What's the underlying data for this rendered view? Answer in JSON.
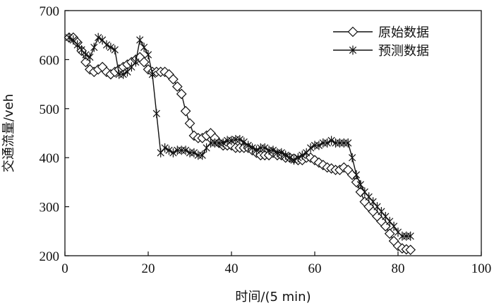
{
  "chart_data": {
    "type": "line",
    "xlabel": "时间/(5 min)",
    "ylabel": "交通流量/veh",
    "xlim": [
      0,
      100
    ],
    "ylim": [
      200,
      700
    ],
    "xticks": [
      0,
      20,
      40,
      60,
      80,
      100
    ],
    "yticks": [
      200,
      300,
      400,
      500,
      600,
      700
    ],
    "grid": false,
    "legend_position": "top-right",
    "series": [
      {
        "name": "原始数据",
        "marker": "diamond",
        "color": "#111111",
        "x": [
          1,
          2,
          3,
          4,
          5,
          6,
          7,
          8,
          9,
          10,
          11,
          12,
          13,
          14,
          15,
          16,
          17,
          18,
          19,
          20,
          21,
          22,
          23,
          24,
          25,
          26,
          27,
          28,
          29,
          30,
          31,
          32,
          33,
          34,
          35,
          36,
          37,
          38,
          39,
          40,
          41,
          42,
          43,
          44,
          45,
          46,
          47,
          48,
          49,
          50,
          51,
          52,
          53,
          54,
          55,
          56,
          57,
          58,
          59,
          60,
          61,
          62,
          63,
          64,
          65,
          66,
          67,
          68,
          69,
          70,
          71,
          72,
          73,
          74,
          75,
          76,
          77,
          78,
          79,
          80,
          81,
          82,
          83
        ],
        "y": [
          645,
          645,
          635,
          618,
          595,
          580,
          575,
          580,
          585,
          575,
          570,
          575,
          580,
          585,
          590,
          595,
          600,
          605,
          595,
          580,
          575,
          575,
          575,
          575,
          570,
          560,
          545,
          530,
          495,
          470,
          445,
          440,
          440,
          445,
          450,
          440,
          430,
          425,
          425,
          425,
          420,
          420,
          420,
          420,
          415,
          410,
          405,
          405,
          405,
          410,
          405,
          405,
          400,
          400,
          398,
          395,
          395,
          400,
          400,
          395,
          390,
          385,
          380,
          378,
          375,
          375,
          380,
          375,
          365,
          350,
          330,
          310,
          300,
          290,
          280,
          270,
          260,
          245,
          230,
          220,
          215,
          213,
          212
        ]
      },
      {
        "name": "预测数据",
        "marker": "asterisk",
        "color": "#111111",
        "x": [
          1,
          2,
          3,
          4,
          5,
          6,
          7,
          8,
          9,
          10,
          11,
          12,
          13,
          14,
          15,
          16,
          17,
          18,
          19,
          20,
          21,
          22,
          23,
          24,
          25,
          26,
          27,
          28,
          29,
          30,
          31,
          32,
          33,
          34,
          35,
          36,
          37,
          38,
          39,
          40,
          41,
          42,
          43,
          44,
          45,
          46,
          47,
          48,
          49,
          50,
          51,
          52,
          53,
          54,
          55,
          56,
          57,
          58,
          59,
          60,
          61,
          62,
          63,
          64,
          65,
          66,
          67,
          68,
          69,
          70,
          71,
          72,
          73,
          74,
          75,
          76,
          77,
          78,
          79,
          80,
          81,
          82,
          83
        ],
        "y": [
          645,
          640,
          630,
          620,
          610,
          605,
          625,
          645,
          640,
          630,
          625,
          620,
          570,
          570,
          575,
          585,
          595,
          640,
          625,
          610,
          570,
          490,
          410,
          420,
          415,
          410,
          415,
          415,
          415,
          410,
          410,
          405,
          405,
          420,
          430,
          430,
          430,
          430,
          435,
          435,
          437,
          437,
          432,
          425,
          420,
          415,
          420,
          420,
          415,
          415,
          410,
          410,
          405,
          400,
          395,
          400,
          405,
          410,
          420,
          425,
          425,
          430,
          430,
          435,
          430,
          430,
          430,
          430,
          400,
          365,
          345,
          330,
          320,
          310,
          300,
          290,
          280,
          270,
          260,
          248,
          240,
          240,
          240
        ]
      }
    ]
  }
}
